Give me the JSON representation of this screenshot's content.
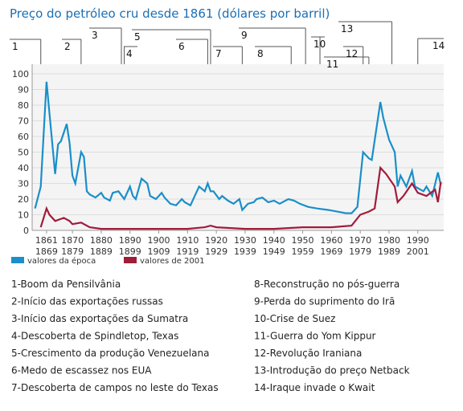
{
  "chart_data": {
    "type": "line",
    "title": "Preço do petróleo cru desde 1861 (dólares por barril)",
    "xlim": [
      1856,
      1999
    ],
    "ylim": [
      0,
      100
    ],
    "yticks": [
      0,
      10,
      20,
      30,
      40,
      50,
      60,
      70,
      80,
      90,
      100
    ],
    "xticks": [
      1861,
      1870,
      1880,
      1890,
      1900,
      1910,
      1920,
      1930,
      1940,
      1950,
      1960,
      1970,
      1980,
      1990
    ],
    "xtick_sublabels": [
      "1869",
      "1879",
      "1889",
      "1899",
      "1909",
      "1919",
      "1929",
      "1939",
      "1949",
      "1959",
      "1969",
      "1979",
      "1989",
      "2001"
    ],
    "grid": true,
    "series": [
      {
        "name": "valores da época",
        "color": "#1a8fc9",
        "x": [
          1857,
          1859,
          1861,
          1862,
          1864,
          1865,
          1866,
          1868,
          1869,
          1870,
          1871,
          1873,
          1874,
          1875,
          1876,
          1878,
          1880,
          1881,
          1883,
          1884,
          1886,
          1888,
          1890,
          1891,
          1892,
          1894,
          1896,
          1897,
          1899,
          1901,
          1902,
          1904,
          1906,
          1908,
          1909,
          1911,
          1913,
          1914,
          1916,
          1917,
          1918,
          1919,
          1921,
          1922,
          1924,
          1926,
          1928,
          1929,
          1931,
          1933,
          1934,
          1936,
          1938,
          1940,
          1942,
          1945,
          1947,
          1949,
          1952,
          1955,
          1959,
          1962,
          1965,
          1967,
          1969,
          1971,
          1973,
          1974,
          1977,
          1978,
          1980,
          1982,
          1983,
          1984,
          1986,
          1988,
          1989,
          1992,
          1993,
          1995,
          1997,
          1998
        ],
        "values": [
          14,
          28,
          95,
          75,
          36,
          55,
          57,
          68,
          56,
          35,
          30,
          50,
          47,
          25,
          23,
          21,
          24,
          21,
          19,
          24,
          25,
          20,
          28,
          22,
          20,
          33,
          30,
          22,
          20,
          24,
          21,
          17,
          16,
          20,
          18,
          16,
          24,
          28,
          25,
          30,
          25,
          25,
          20,
          22,
          19,
          17,
          20,
          13,
          17,
          18,
          20,
          21,
          18,
          19,
          17,
          20,
          19,
          17,
          15,
          14,
          13,
          12,
          11,
          11,
          15,
          50,
          46,
          45,
          82,
          72,
          58,
          50,
          28,
          35,
          28,
          38,
          28,
          25,
          28,
          22,
          37,
          29
        ]
      },
      {
        "name": "valores de 2001",
        "color": "#a01c3a",
        "x": [
          1859,
          1861,
          1862,
          1864,
          1867,
          1869,
          1870,
          1873,
          1876,
          1880,
          1890,
          1900,
          1910,
          1916,
          1918,
          1920,
          1930,
          1940,
          1950,
          1960,
          1967,
          1970,
          1973,
          1975,
          1977,
          1979,
          1982,
          1983,
          1985,
          1988,
          1990,
          1993,
          1996,
          1997,
          1998
        ],
        "values": [
          2,
          14,
          10,
          6,
          8,
          6,
          4,
          5,
          2,
          1,
          1,
          1,
          1,
          2,
          3,
          2,
          1,
          1,
          2,
          2,
          3,
          10,
          12,
          14,
          40,
          36,
          28,
          18,
          22,
          30,
          24,
          22,
          26,
          18,
          31
        ]
      }
    ],
    "events": [
      {
        "label": "1",
        "x": 1859,
        "text": "1-Boom da Pensilvânia"
      },
      {
        "label": "2",
        "x": 1873,
        "text": "2-Início das exportações russas"
      },
      {
        "label": "3",
        "x": 1887,
        "text": "3-Início das exportações da Sumatra"
      },
      {
        "label": "4",
        "x": 1888,
        "text": "4-Descoberta de Spindletop, Texas"
      },
      {
        "label": "5",
        "x": 1918,
        "text": "5-Crescimento da produção Venezuelana"
      },
      {
        "label": "6",
        "x": 1917,
        "text": "6-Medo de escassez nos EUA"
      },
      {
        "label": "7",
        "x": 1929,
        "text": "7-Descoberta de campos no leste do Texas"
      },
      {
        "label": "8",
        "x": 1946,
        "text": "8-Reconstrução no pós-guerra"
      },
      {
        "label": "9",
        "x": 1951,
        "text": "9-Perda do suprimento do Irã"
      },
      {
        "label": "10",
        "x": 1956,
        "text": "10-Crise de Suez"
      },
      {
        "label": "11",
        "x": 1973,
        "text": "11-Guerra do Yom Kippur"
      },
      {
        "label": "12",
        "x": 1971,
        "text": "12-Revolução Iraniana"
      },
      {
        "label": "13",
        "x": 1981,
        "text": "13-Introdução do preço Netback"
      },
      {
        "label": "14",
        "x": 1990,
        "text": "14-Iraque invade o Kwait"
      }
    ]
  }
}
